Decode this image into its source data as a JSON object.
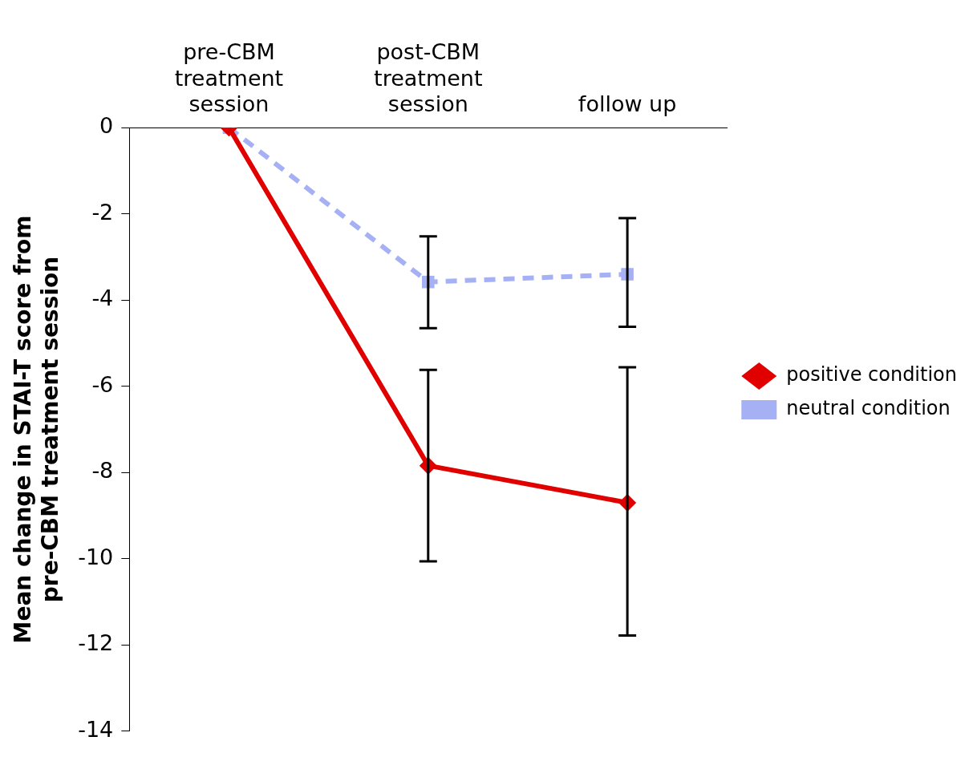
{
  "chart_data": {
    "type": "line",
    "ylabel": "Mean change in STAI-T score from pre-CBM treatment session",
    "categories": [
      "pre-CBM treatment session",
      "post-CBM treatment session",
      "follow up"
    ],
    "ylim": [
      -14,
      0
    ],
    "yticks": [
      0,
      -2,
      -4,
      -6,
      -8,
      -10,
      -12,
      -14
    ],
    "grid": false,
    "legend": "right",
    "series": [
      {
        "name": "positive condition",
        "color": "#e00000",
        "values": [
          0,
          -7.84,
          -8.7
        ],
        "errors": [
          null,
          [
            -10.06,
            -5.62
          ],
          [
            -11.78,
            -5.56
          ]
        ],
        "marker": "diamond",
        "line_style": "solid"
      },
      {
        "name": "neutral condition",
        "color": "#a6b0f5",
        "values": [
          0,
          -3.58,
          -3.4
        ],
        "errors": [
          null,
          [
            -4.65,
            -2.52
          ],
          [
            -4.62,
            -2.1
          ]
        ],
        "marker": "square",
        "line_style": "dashed"
      }
    ]
  }
}
